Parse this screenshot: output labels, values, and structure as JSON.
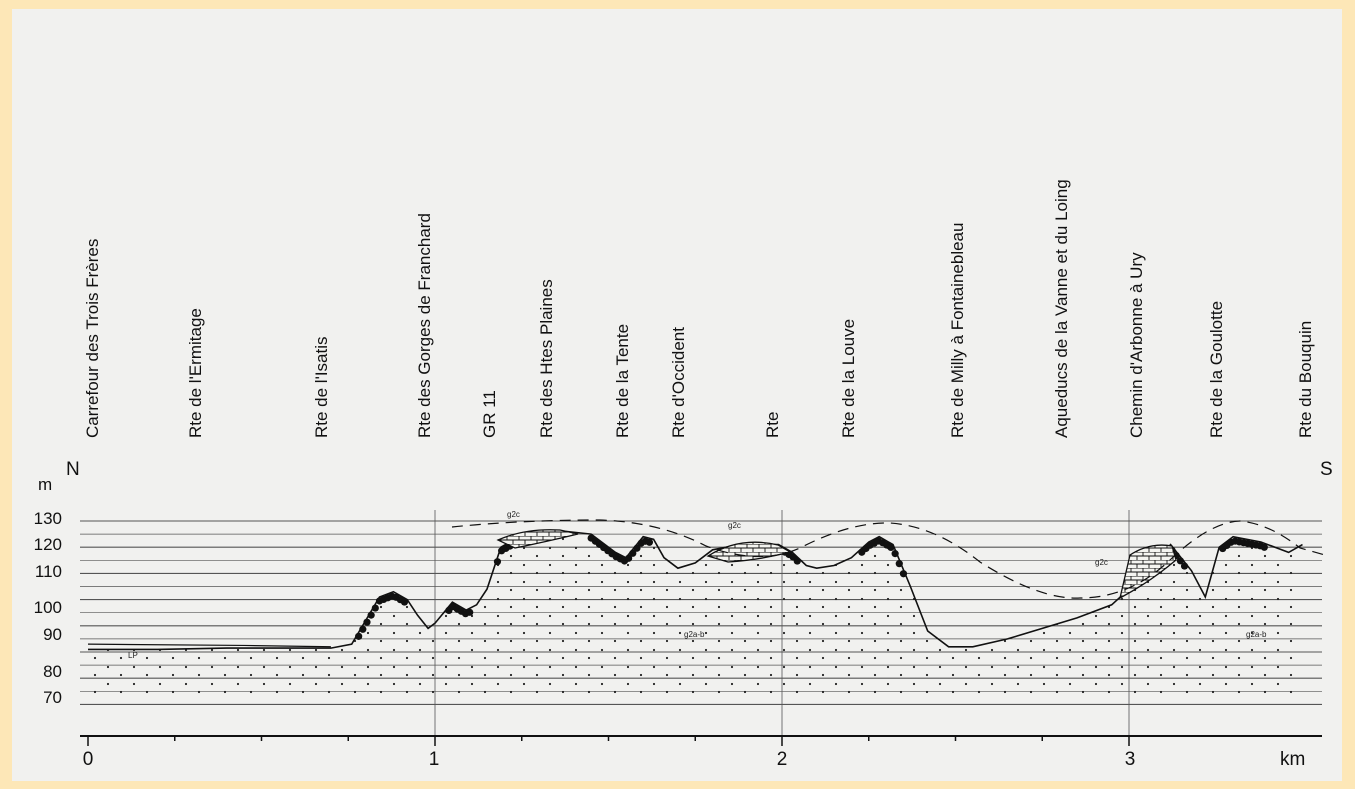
{
  "frame": {
    "border_color": "#fde7b7",
    "paper_color": "#f1f1ef"
  },
  "routes": [
    "Carrefour des Trois Frères",
    "Rte de l'Ermitage",
    "Rte de l'Isatis",
    "Rte des Gorges de Franchard",
    "GR 11",
    "Rte des Htes Plaines",
    "Rte de la Tente",
    "Rte d'Occident",
    "Rte",
    "Rte de la Louve",
    "Rte de Milly à Fontainebleau",
    "Aqueducs de la Vanne et du Loing",
    "Chemin d'Arbonne à Ury",
    "Rte de la Goulotte",
    "Rte du Bouquin"
  ],
  "orientation": {
    "north": "N",
    "south": "S"
  },
  "y_axis": {
    "unit": "m",
    "ticks": [
      "130",
      "120",
      "110",
      "100",
      "90",
      "80",
      "70"
    ]
  },
  "x_axis": {
    "unit": "km",
    "ticks": [
      "0",
      "1",
      "2",
      "3"
    ]
  },
  "layer_labels": {
    "g2c_1": "g2c",
    "g2c_2": "g2c",
    "g2c_3": "g2c",
    "g2ab_1": "g2a-b",
    "g2ab_2": "g2a-b",
    "lp": "LP"
  },
  "chart_data": {
    "type": "line",
    "title": "",
    "xlabel": "km",
    "ylabel": "m",
    "xlim": [
      0,
      3.5
    ],
    "ylim": [
      65,
      130
    ],
    "series": [
      {
        "values_km_m": [
          [
            0,
            81
          ],
          [
            0.2,
            81
          ],
          [
            0.4,
            81.5
          ],
          [
            0.6,
            81.5
          ],
          [
            0.7,
            81.5
          ],
          [
            0.76,
            83
          ],
          [
            0.8,
            92
          ],
          [
            0.84,
            101
          ],
          [
            0.88,
            103
          ],
          [
            0.92,
            100
          ],
          [
            0.95,
            94
          ],
          [
            0.98,
            89
          ],
          [
            1.0,
            91
          ],
          [
            1.05,
            99
          ],
          [
            1.09,
            96
          ],
          [
            1.12,
            98
          ],
          [
            1.15,
            104
          ],
          [
            1.19,
            120
          ],
          [
            1.23,
            123
          ],
          [
            1.3,
            125
          ],
          [
            1.38,
            126
          ],
          [
            1.45,
            125
          ],
          [
            1.52,
            118
          ],
          [
            1.55,
            116
          ],
          [
            1.6,
            124
          ],
          [
            1.63,
            123
          ],
          [
            1.66,
            116
          ],
          [
            1.7,
            112
          ],
          [
            1.75,
            114
          ],
          [
            1.8,
            119
          ],
          [
            1.88,
            121
          ],
          [
            1.95,
            121
          ],
          [
            1.99,
            121
          ],
          [
            2.03,
            118
          ],
          [
            2.07,
            113
          ],
          [
            2.1,
            112
          ],
          [
            2.15,
            113
          ],
          [
            2.2,
            116
          ],
          [
            2.25,
            122
          ],
          [
            2.28,
            124
          ],
          [
            2.32,
            121
          ],
          [
            2.37,
            105
          ],
          [
            2.42,
            88
          ],
          [
            2.48,
            82
          ],
          [
            2.55,
            82
          ],
          [
            2.65,
            85
          ],
          [
            2.75,
            89
          ],
          [
            2.85,
            93
          ],
          [
            2.95,
            98
          ],
          [
            3.0,
            104
          ],
          [
            3.07,
            114
          ],
          [
            3.12,
            121
          ],
          [
            3.18,
            111
          ],
          [
            3.22,
            101
          ],
          [
            3.26,
            120
          ],
          [
            3.3,
            124
          ],
          [
            3.38,
            122
          ],
          [
            3.46,
            118
          ],
          [
            3.5,
            121
          ]
        ]
      }
    ]
  }
}
